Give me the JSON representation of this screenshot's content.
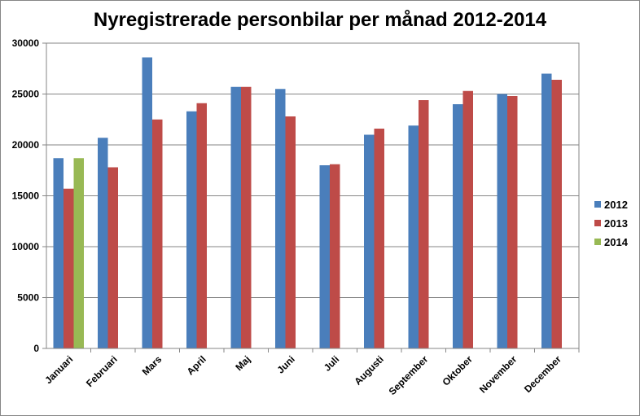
{
  "chart_data": {
    "type": "bar",
    "title": "Nyregistrerade personbilar per månad 2012-2014",
    "categories": [
      "Januari",
      "Februari",
      "Mars",
      "April",
      "Maj",
      "Juni",
      "Juli",
      "Augusti",
      "September",
      "Oktober",
      "November",
      "December"
    ],
    "series": [
      {
        "name": "2012",
        "color": "#4a7ebb",
        "values": [
          18700,
          20700,
          28600,
          23300,
          25700,
          25500,
          18000,
          21000,
          21900,
          24000,
          25000,
          27000
        ]
      },
      {
        "name": "2013",
        "color": "#be4b48",
        "values": [
          15700,
          17800,
          22500,
          24100,
          25700,
          22800,
          18100,
          21600,
          24400,
          25300,
          24800,
          26400
        ]
      },
      {
        "name": "2014",
        "color": "#98b954",
        "values": [
          18700,
          null,
          null,
          null,
          null,
          null,
          null,
          null,
          null,
          null,
          null,
          null
        ]
      }
    ],
    "ylim": [
      0,
      30000
    ],
    "yticks": [
      0,
      5000,
      10000,
      15000,
      20000,
      25000,
      30000
    ],
    "grid": true,
    "legend_position": "right"
  }
}
